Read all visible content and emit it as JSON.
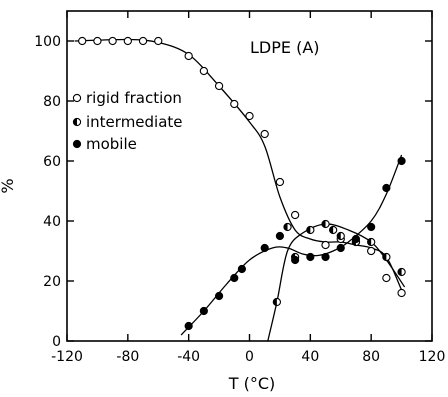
{
  "chart_data": {
    "type": "scatter",
    "annotation": "LDPE (A)",
    "xlabel": "T (°C)",
    "ylabel": "%",
    "xlim": [
      -120,
      120
    ],
    "ylim": [
      0,
      110
    ],
    "xticks": [
      -120,
      -80,
      -40,
      0,
      40,
      80,
      120
    ],
    "yticks": [
      0,
      20,
      40,
      60,
      80,
      100
    ],
    "grid": false,
    "legend_position": "upper-left",
    "series": [
      {
        "name": "rigid fraction",
        "marker": "open-circle",
        "x": [
          -110,
          -100,
          -90,
          -80,
          -70,
          -60,
          -40,
          -30,
          -20,
          -10,
          0,
          10,
          20,
          30,
          50,
          60,
          70,
          80,
          90,
          100
        ],
        "y": [
          100,
          100,
          100,
          100,
          100,
          100,
          95,
          90,
          85,
          79,
          75,
          69,
          53,
          42,
          32,
          34,
          33,
          30,
          21,
          16
        ],
        "curve": [
          [
            -115,
            100
          ],
          [
            -80,
            100.5
          ],
          [
            -60,
            99.5
          ],
          [
            -40,
            95.5
          ],
          [
            -20,
            85
          ],
          [
            0,
            73
          ],
          [
            10,
            65
          ],
          [
            20,
            48
          ],
          [
            30,
            37
          ],
          [
            40,
            34
          ],
          [
            50,
            33
          ],
          [
            60,
            33
          ],
          [
            70,
            32
          ],
          [
            80,
            31
          ],
          [
            90,
            28
          ],
          [
            100,
            17
          ]
        ]
      },
      {
        "name": "intermediate",
        "marker": "half-filled-circle",
        "x": [
          18,
          25,
          30,
          40,
          50,
          55,
          60,
          70,
          80,
          90,
          100
        ],
        "y": [
          13,
          38,
          28,
          37,
          39,
          37,
          35,
          33,
          33,
          28,
          23
        ],
        "curve": [
          [
            12,
            0
          ],
          [
            18,
            13
          ],
          [
            25,
            30
          ],
          [
            35,
            36
          ],
          [
            50,
            39
          ],
          [
            65,
            37
          ],
          [
            80,
            33
          ],
          [
            90,
            27
          ],
          [
            102,
            18
          ]
        ]
      },
      {
        "name": "mobile",
        "marker": "filled-circle",
        "x": [
          -40,
          -30,
          -20,
          -10,
          -5,
          10,
          20,
          30,
          40,
          50,
          60,
          70,
          80,
          90,
          100
        ],
        "y": [
          5,
          10,
          15,
          21,
          24,
          31,
          35,
          27,
          28,
          28,
          31,
          34,
          38,
          51,
          60
        ],
        "curve": [
          [
            -45,
            2
          ],
          [
            -30,
            10
          ],
          [
            -15,
            19
          ],
          [
            0,
            27
          ],
          [
            15,
            31
          ],
          [
            25,
            31
          ],
          [
            35,
            29
          ],
          [
            45,
            28.5
          ],
          [
            55,
            30
          ],
          [
            65,
            33
          ],
          [
            80,
            40
          ],
          [
            90,
            49
          ],
          [
            100,
            62
          ]
        ]
      }
    ]
  }
}
